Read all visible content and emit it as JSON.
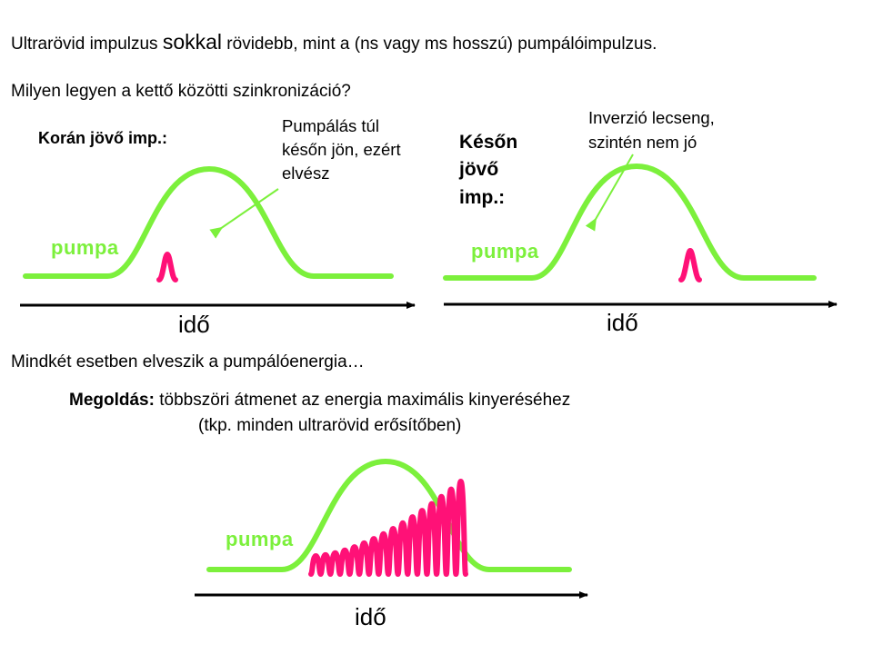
{
  "colors": {
    "pump": "#7CF03C",
    "pulse": "#FF1177",
    "text": "#000000",
    "arrow": "#7CF03C"
  },
  "line1": {
    "a": "Ultrarövid impulzus ",
    "b": "sokkal",
    "c": " rövidebb, mint a  (ns vagy ms hosszú) pumpálóimpulzus."
  },
  "line2": "Milyen legyen a kettő közötti szinkronizáció?",
  "left_panel": {
    "title": "Korán jövő imp.:",
    "annotation": [
      "Pumpálás túl",
      "későn jön, ezért",
      "elvész"
    ],
    "pump_label": "pumpa",
    "time_label": "idő"
  },
  "right_panel": {
    "title": [
      "Későn",
      "jövő",
      "imp.:"
    ],
    "annotation": [
      "Inverzió lecseng,",
      "szintén nem jó"
    ],
    "pump_label": "pumpa",
    "time_label": "idő"
  },
  "line3": "Mindkét esetben elveszik a pumpálóenergia…",
  "solution": {
    "label": "Megoldás:",
    "text": " többszöri átmenet az energia maximális kinyeréséhez",
    "sub": "(tkp. minden ultrarövid erősítőben)"
  },
  "bottom_panel": {
    "pump_label": "pumpa",
    "time_label": "idő"
  }
}
